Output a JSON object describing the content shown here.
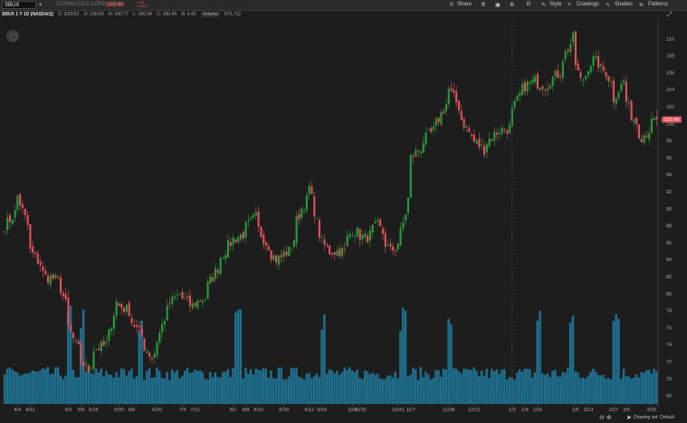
{
  "header": {
    "symbol": "SBUX",
    "company": "STARBUCKS CORP. COM",
    "last_price": "100.49",
    "change_top": "-0.39",
    "change_bottom": "-0.38%"
  },
  "toolbar": {
    "share_label": "Share",
    "style_label": "Style",
    "drawings_label": "Drawings",
    "studies_label": "Studies",
    "patterns_label": "Patterns"
  },
  "infoline": {
    "title": "SBUX 1 Y 1D [NASDAQ]",
    "date": "D: 3/22/23",
    "open": "O: 100.69",
    "high": "H: 100.77",
    "low": "L: 100.34",
    "close": "C: 100.49",
    "range": "R: 0.42",
    "volume_label": "Volume",
    "volume_value": "673,712"
  },
  "footer": {
    "drawing_set": "Drawing set: Default"
  },
  "colors": {
    "up": "#2a9a3c",
    "down": "#e0525b",
    "volume": "#1f6f8f",
    "price_tag": "#e0525b"
  },
  "icons": [
    "starbucks-logo-icon",
    "share-icon",
    "flask-icon",
    "gear-icon",
    "style-icon",
    "drawings-icon",
    "studies-icon",
    "patterns-icon",
    "zoom-out-icon",
    "zoom-in-icon",
    "cursor-icon"
  ],
  "chart_data": {
    "type": "candlestick",
    "x_axis": {
      "ticks": [
        "4/4",
        "4/11",
        "5/2",
        "5/9",
        "5/16",
        "5/30",
        "6/6",
        "6/20",
        "7/4",
        "7/11",
        "8/1",
        "8/8",
        "8/15",
        "8/29",
        "9/12",
        "9/19",
        "10/5",
        "10/10",
        "10/31",
        "11/7",
        "11/28",
        "12/12",
        "1/2",
        "1/9",
        "1/16",
        "2/6",
        "2/13",
        "2/27",
        "3/6",
        "3/20"
      ],
      "first_date": "3/28/22",
      "last_date": "3/22/23"
    },
    "y_axis": {
      "ticks": [
        68,
        70,
        72,
        74,
        76,
        78,
        80,
        82,
        84,
        86,
        88,
        90,
        92,
        94,
        96,
        98,
        100,
        102,
        104,
        106,
        108,
        110
      ],
      "range": [
        67,
        112
      ],
      "side": "right"
    },
    "last_price_label": "100.49",
    "session_separator_date": "1/2",
    "price_waypoints": [
      [
        "3/28/22",
        88
      ],
      [
        "4/1/22",
        89.5
      ],
      [
        "4/4/22",
        91.5
      ],
      [
        "4/8/22",
        88
      ],
      [
        "4/11/22",
        85
      ],
      [
        "4/19/22",
        82
      ],
      [
        "4/26/22",
        81.5
      ],
      [
        "5/2/22",
        76
      ],
      [
        "5/5/22",
        74
      ],
      [
        "5/9/22",
        72
      ],
      [
        "5/12/22",
        71
      ],
      [
        "5/16/22",
        73.5
      ],
      [
        "5/23/22",
        74
      ],
      [
        "5/27/22",
        79
      ],
      [
        "6/3/22",
        78
      ],
      [
        "6/10/22",
        75
      ],
      [
        "6/16/22",
        72.5
      ],
      [
        "6/20/22",
        74.5
      ],
      [
        "6/24/22",
        78
      ],
      [
        "7/1/22",
        80
      ],
      [
        "7/8/22",
        78.5
      ],
      [
        "7/15/22",
        79.5
      ],
      [
        "7/22/22",
        83
      ],
      [
        "7/29/22",
        86
      ],
      [
        "8/5/22",
        87
      ],
      [
        "8/12/22",
        89
      ],
      [
        "8/18/22",
        86
      ],
      [
        "8/24/22",
        84
      ],
      [
        "8/31/22",
        85
      ],
      [
        "9/7/22",
        90
      ],
      [
        "9/12/22",
        92.5
      ],
      [
        "9/16/22",
        87
      ],
      [
        "9/22/22",
        85
      ],
      [
        "9/30/22",
        85
      ],
      [
        "10/5/22",
        87.5
      ],
      [
        "10/12/22",
        86.5
      ],
      [
        "10/19/22",
        88
      ],
      [
        "10/26/22",
        85
      ],
      [
        "10/31/22",
        86
      ],
      [
        "11/3/22",
        89.5
      ],
      [
        "11/7/22",
        96
      ],
      [
        "11/14/22",
        98
      ],
      [
        "11/21/22",
        100
      ],
      [
        "11/28/22",
        104
      ],
      [
        "12/2/22",
        102
      ],
      [
        "12/9/22",
        98.5
      ],
      [
        "12/16/22",
        97
      ],
      [
        "12/23/22",
        99
      ],
      [
        "12/30/22",
        99.5
      ],
      [
        "1/6/23",
        104
      ],
      [
        "1/13/23",
        105
      ],
      [
        "1/20/23",
        104.5
      ],
      [
        "1/27/23",
        106
      ],
      [
        "2/3/23",
        110
      ],
      [
        "2/8/23",
        105
      ],
      [
        "2/15/23",
        107.5
      ],
      [
        "2/22/23",
        106
      ],
      [
        "2/27/23",
        103
      ],
      [
        "3/3/23",
        105
      ],
      [
        "3/8/23",
        101
      ],
      [
        "3/14/23",
        98.5
      ],
      [
        "3/22/23",
        100.49
      ]
    ],
    "volume_spike_dates": [
      "5/2/22",
      "5/9/22",
      "6/10/22",
      "8/3/22",
      "9/19/22",
      "11/2/22",
      "11/28/22",
      "1/16/23",
      "2/3/23",
      "2/28/23"
    ]
  }
}
